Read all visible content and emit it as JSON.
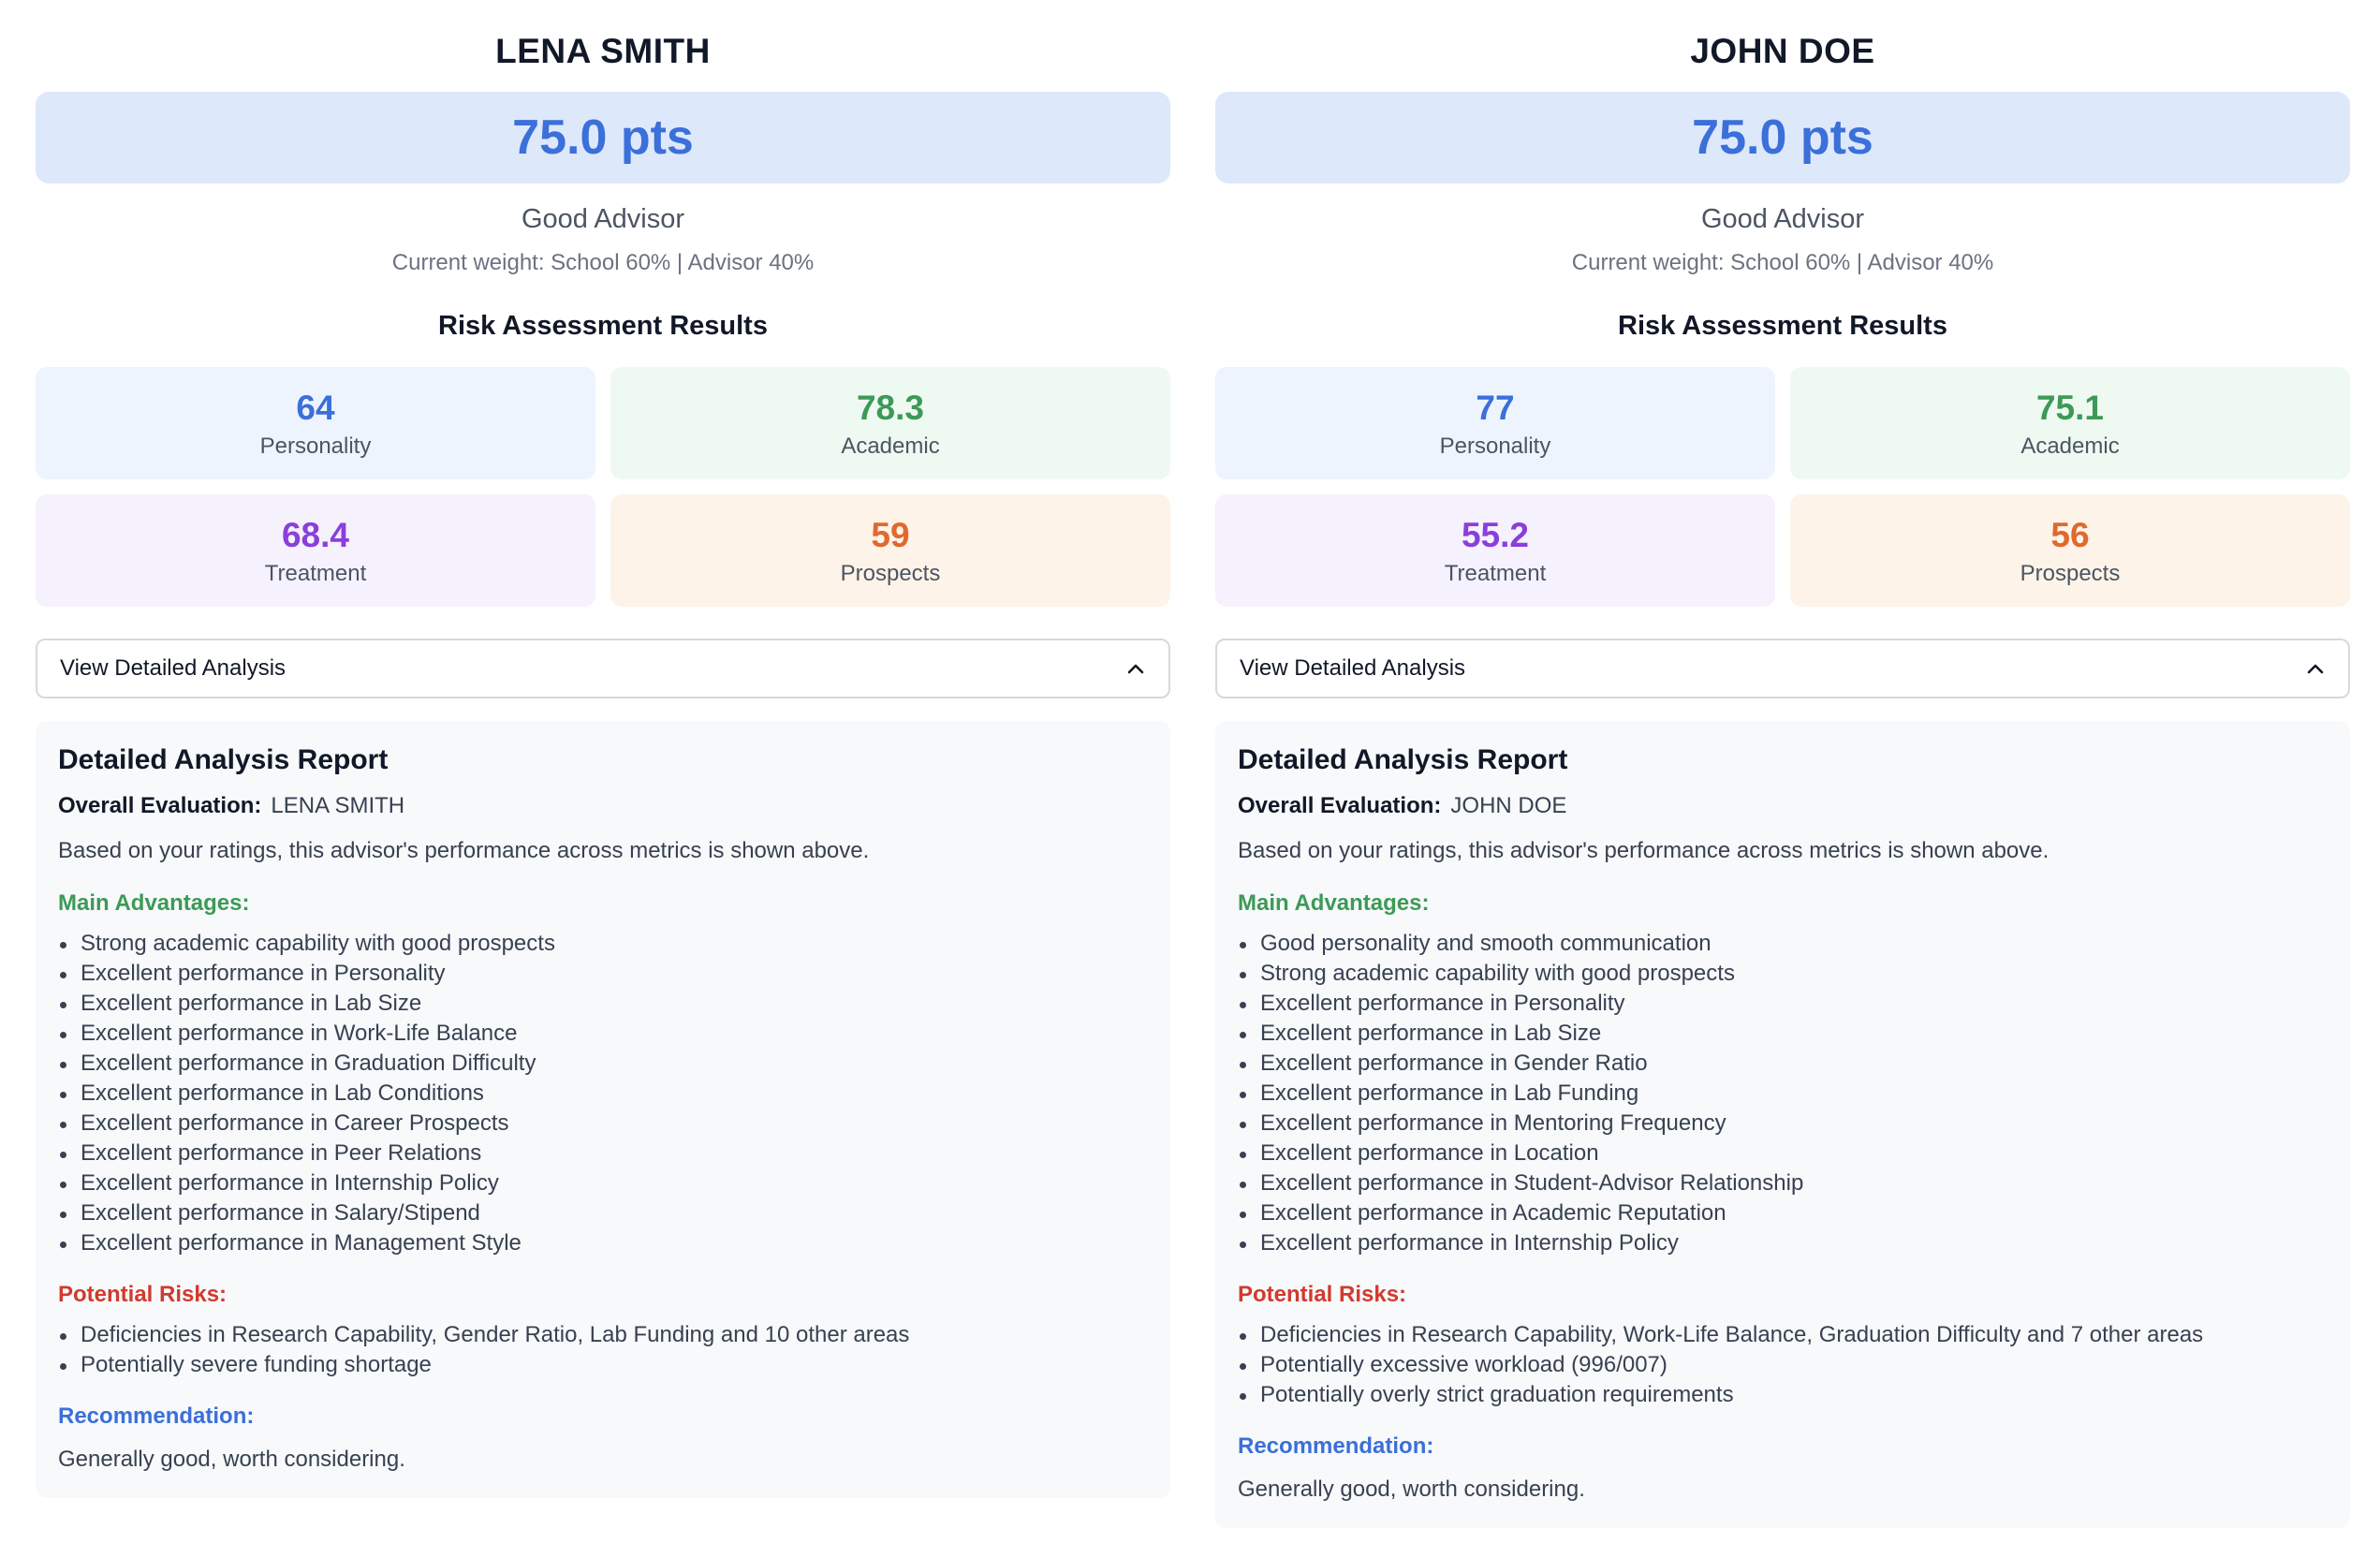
{
  "advisors": [
    {
      "name": "LENA SMITH",
      "score": "75.0 pts",
      "grade": "Good Advisor",
      "weight_text": "Current weight: School 60% | Advisor 40%",
      "risk_title": "Risk Assessment Results",
      "metrics": {
        "personality": {
          "value": "64",
          "label": "Personality"
        },
        "academic": {
          "value": "78.3",
          "label": "Academic"
        },
        "treatment": {
          "value": "68.4",
          "label": "Treatment"
        },
        "prospects": {
          "value": "59",
          "label": "Prospects"
        }
      },
      "toggle_label": "View Detailed Analysis",
      "report": {
        "title": "Detailed Analysis Report",
        "overall_label": "Overall Evaluation",
        "overall_sep": ":",
        "overall_value": "LENA SMITH",
        "description": "Based on your ratings, this advisor's performance across metrics is shown above.",
        "advantages_heading": "Main Advantages:",
        "advantages": [
          "Strong academic capability with good prospects",
          "Excellent performance in Personality",
          "Excellent performance in Lab Size",
          "Excellent performance in Work-Life Balance",
          "Excellent performance in Graduation Difficulty",
          "Excellent performance in Lab Conditions",
          "Excellent performance in Career Prospects",
          "Excellent performance in Peer Relations",
          "Excellent performance in Internship Policy",
          "Excellent performance in Salary/Stipend",
          "Excellent performance in Management Style"
        ],
        "risks_heading": "Potential Risks:",
        "risks": [
          "Deficiencies in Research Capability, Gender Ratio, Lab Funding and 10 other areas",
          "Potentially severe funding shortage"
        ],
        "recommendation_heading": "Recommendation:",
        "recommendation": "Generally good, worth considering."
      }
    },
    {
      "name": "JOHN DOE",
      "score": "75.0 pts",
      "grade": "Good Advisor",
      "weight_text": "Current weight: School 60% | Advisor 40%",
      "risk_title": "Risk Assessment Results",
      "metrics": {
        "personality": {
          "value": "77",
          "label": "Personality"
        },
        "academic": {
          "value": "75.1",
          "label": "Academic"
        },
        "treatment": {
          "value": "55.2",
          "label": "Treatment"
        },
        "prospects": {
          "value": "56",
          "label": "Prospects"
        }
      },
      "toggle_label": "View Detailed Analysis",
      "report": {
        "title": "Detailed Analysis Report",
        "overall_label": "Overall Evaluation",
        "overall_sep": ":",
        "overall_value": "JOHN DOE",
        "description": "Based on your ratings, this advisor's performance across metrics is shown above.",
        "advantages_heading": "Main Advantages:",
        "advantages": [
          "Good personality and smooth communication",
          "Strong academic capability with good prospects",
          "Excellent performance in Personality",
          "Excellent performance in Lab Size",
          "Excellent performance in Gender Ratio",
          "Excellent performance in Lab Funding",
          "Excellent performance in Mentoring Frequency",
          "Excellent performance in Location",
          "Excellent performance in Student-Advisor Relationship",
          "Excellent performance in Academic Reputation",
          "Excellent performance in Internship Policy"
        ],
        "risks_heading": "Potential Risks:",
        "risks": [
          "Deficiencies in Research Capability, Work-Life Balance, Graduation Difficulty and 7 other areas",
          "Potentially excessive workload (996/007)",
          "Potentially overly strict graduation requirements"
        ],
        "recommendation_heading": "Recommendation:",
        "recommendation": "Generally good, worth considering."
      }
    }
  ]
}
